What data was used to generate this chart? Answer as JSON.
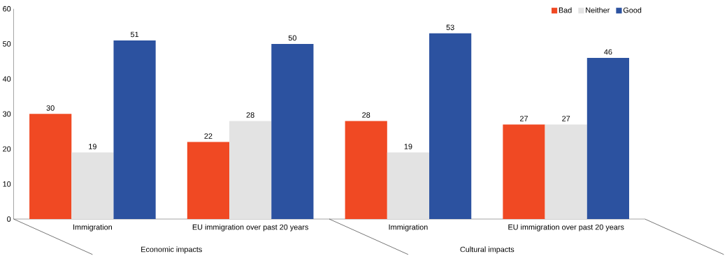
{
  "chart_data": {
    "type": "bar",
    "categories": [
      "Immigration",
      "EU immigration over past 20 years",
      "Immigration",
      "EU immigration over past 20 years"
    ],
    "series": [
      {
        "name": "Bad",
        "color": "#f04923",
        "values": [
          30,
          22,
          28,
          27
        ]
      },
      {
        "name": "Neither",
        "color": "#e3e3e3",
        "values": [
          19,
          28,
          19,
          27
        ]
      },
      {
        "name": "Good",
        "color": "#2c52a0",
        "values": [
          51,
          50,
          53,
          46
        ]
      }
    ],
    "annotations": [
      "Economic impacts",
      "Cultural impacts"
    ],
    "ylim": [
      0,
      60
    ],
    "yticks": [
      0,
      10,
      20,
      30,
      40,
      50,
      60
    ],
    "data_labels": true,
    "legend": "top right",
    "grid": false
  }
}
